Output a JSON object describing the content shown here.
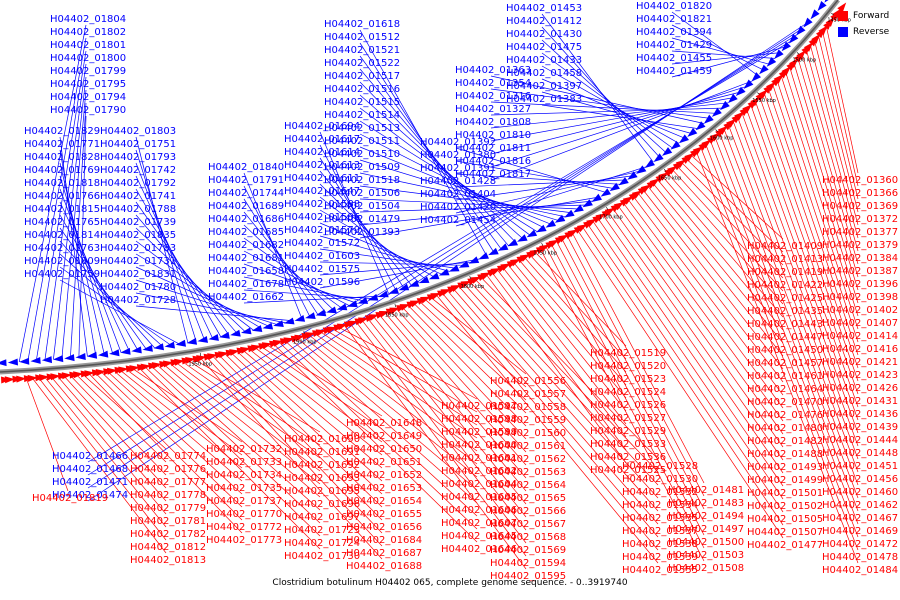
{
  "caption": "Clostridium botulinum H04402 065, complete genome sequence. - 0..3919740",
  "legend": [
    {
      "label": "Forward",
      "color": "#ff0000"
    },
    {
      "label": "Reverse",
      "color": "#0000ff"
    }
  ],
  "scale_ticks": [
    "1450 kbp",
    "1500 kbp",
    "1550 kbp",
    "1600 kbp",
    "1650 kbp",
    "1700 kbp",
    "1750 kbp",
    "1800 kbp",
    "1850 kbp",
    "1900 kbp",
    "1950 kbp"
  ],
  "reverse_labels": [
    "H04402_01804",
    "H04402_01802",
    "H04402_01801",
    "H04402_01800",
    "H04402_01799",
    "H04402_01795",
    "H04402_01794",
    "H04402_01790",
    "H04402_01829",
    "H04402_01771",
    "H04402_01828",
    "H04402_01769",
    "H04402_01818",
    "H04402_01766",
    "H04402_01815",
    "H04402_01765",
    "H04402_01814",
    "H04402_01763",
    "H04402_01809",
    "H04402_01759",
    "H04402_01803",
    "H04402_01751",
    "H04402_01793",
    "H04402_01742",
    "H04402_01792",
    "H04402_01741",
    "H04402_01788",
    "H04402_01739",
    "H04402_01835",
    "H04402_01783",
    "H04402_01731",
    "H04402_01831",
    "H04402_01780",
    "H04402_01728",
    "H04402_01840",
    "H04402_01791",
    "H04402_01744",
    "H04402_01689",
    "H04402_01686",
    "H04402_01685",
    "H04402_01682",
    "H04402_01681",
    "H04402_01658",
    "H04402_01678",
    "H04402_01662",
    "H04402_01694",
    "H04402_01617",
    "H04402_01614",
    "H04402_01613",
    "H04402_01611",
    "H04402_01647",
    "H04402_01588",
    "H04402_01586",
    "H04402_01579",
    "H04402_01572",
    "H04402_01603",
    "H04402_01575",
    "H04402_01596",
    "H04402_01618",
    "H04402_01512",
    "H04402_01521",
    "H04402_01522",
    "H04402_01517",
    "H04402_01516",
    "H04402_01515",
    "H04402_01514",
    "H04402_01513",
    "H04402_01511",
    "H04402_01510",
    "H04402_01509",
    "H04402_01518",
    "H04402_01506",
    "H04402_01504",
    "H04402_01479",
    "H04402_01393",
    "H04402_01392",
    "H04402_01380",
    "H04402_01391",
    "H04402_01428",
    "H04402_01404",
    "H04402_01420",
    "H04402_01454",
    "H04402_01453",
    "H04402_01412",
    "H04402_01430",
    "H04402_01475",
    "H04402_01433",
    "H04402_01458",
    "H04402_01397",
    "H04402_01383",
    "H04402_01363",
    "H04402_01354",
    "H04402_01316",
    "H04402_01327",
    "H04402_01808",
    "H04402_01810",
    "H04402_01811",
    "H04402_01816",
    "H04402_01817",
    "H04402_01820",
    "H04402_01821",
    "H04402_01394",
    "H04402_01429",
    "H04402_01455",
    "H04402_01459",
    "H04402_01466",
    "H04402_01468",
    "H04402_01471",
    "H04402_01474"
  ],
  "forward_labels": [
    "H04402_01360",
    "H04402_01366",
    "H04402_01369",
    "H04402_01372",
    "H04402_01377",
    "H04402_01379",
    "H04402_01384",
    "H04402_01387",
    "H04402_01396",
    "H04402_01398",
    "H04402_01402",
    "H04402_01407",
    "H04402_01414",
    "H04402_01416",
    "H04402_01421",
    "H04402_01423",
    "H04402_01426",
    "H04402_01431",
    "H04402_01436",
    "H04402_01439",
    "H04402_01444",
    "H04402_01448",
    "H04402_01451",
    "H04402_01456",
    "H04402_01460",
    "H04402_01462",
    "H04402_01467",
    "H04402_01469",
    "H04402_01472",
    "H04402_01478",
    "H04402_01484",
    "H04402_01409",
    "H04402_01413",
    "H04402_01419",
    "H04402_01422",
    "H04402_01425",
    "H04402_01435",
    "H04402_01443",
    "H04402_01447",
    "H04402_01450",
    "H04402_01457",
    "H04402_01461",
    "H04402_01464",
    "H04402_01470",
    "H04402_01476",
    "H04402_01480",
    "H04402_01482",
    "H04402_01488",
    "H04402_01493",
    "H04402_01499",
    "H04402_01501",
    "H04402_01502",
    "H04402_01505",
    "H04402_01507",
    "H04402_01477",
    "H04402_01481",
    "H04402_01483",
    "H04402_01494",
    "H04402_01497",
    "H04402_01500",
    "H04402_01503",
    "H04402_01508",
    "H04402_01519",
    "H04402_01520",
    "H04402_01523",
    "H04402_01524",
    "H04402_01526",
    "H04402_01527",
    "H04402_01529",
    "H04402_01533",
    "H04402_01536",
    "H04402_01525",
    "H04402_01528",
    "H04402_01530",
    "H04402_01532",
    "H04402_01534",
    "H04402_01535",
    "H04402_01537",
    "H04402_01538",
    "H04402_01539",
    "H04402_01555",
    "H04402_01556",
    "H04402_01557",
    "H04402_01558",
    "H04402_01559",
    "H04402_01560",
    "H04402_01561",
    "H04402_01562",
    "H04402_01563",
    "H04402_01564",
    "H04402_01565",
    "H04402_01566",
    "H04402_01567",
    "H04402_01568",
    "H04402_01569",
    "H04402_01594",
    "H04402_01595",
    "H04402_01597",
    "H04402_01598",
    "H04402_01599",
    "H04402_01600",
    "H04402_01601",
    "H04402_01602",
    "H04402_01604",
    "H04402_01605",
    "H04402_01606",
    "H04402_01607",
    "H04402_01645",
    "H04402_01646",
    "H04402_01648",
    "H04402_01649",
    "H04402_01650",
    "H04402_01651",
    "H04402_01652",
    "H04402_01653",
    "H04402_01654",
    "H04402_01655",
    "H04402_01656",
    "H04402_01684",
    "H04402_01687",
    "H04402_01688",
    "H04402_01690",
    "H04402_01691",
    "H04402_01692",
    "H04402_01693",
    "H04402_01695",
    "H04402_01696",
    "H04402_01697",
    "H04402_01723",
    "H04402_01724",
    "H04402_01730",
    "H04402_01732",
    "H04402_01733",
    "H04402_01734",
    "H04402_01735",
    "H04402_01737",
    "H04402_01770",
    "H04402_01772",
    "H04402_01773",
    "H04402_01774",
    "H04402_01776",
    "H04402_01777",
    "H04402_01778",
    "H04402_01779",
    "H04402_01781",
    "H04402_01782",
    "H04402_01812",
    "H04402_01813",
    "H04402_01819"
  ]
}
